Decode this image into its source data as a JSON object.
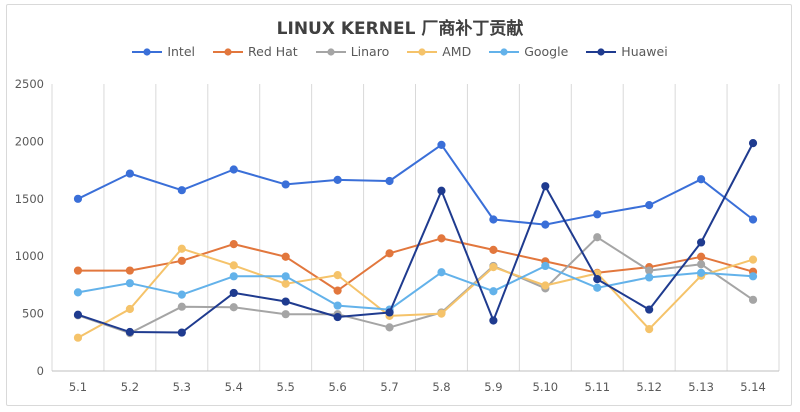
{
  "chart_data": {
    "type": "line",
    "title": "LINUX KERNEL 厂商补丁贡献",
    "xlabel": "",
    "ylabel": "",
    "categories": [
      "5.1",
      "5.2",
      "5.3",
      "5.4",
      "5.5",
      "5.6",
      "5.7",
      "5.8",
      "5.9",
      "5.10",
      "5.11",
      "5.12",
      "5.13",
      "5.14"
    ],
    "ylim": [
      0,
      2500
    ],
    "yticks": [
      0,
      500,
      1000,
      1500,
      2000,
      2500
    ],
    "grid": "vertical",
    "legend_position": "top",
    "series": [
      {
        "name": "Intel",
        "color": "#3a6fd8",
        "values": [
          1500,
          1720,
          1575,
          1755,
          1625,
          1665,
          1655,
          1970,
          1320,
          1275,
          1365,
          1445,
          1670,
          1320
        ]
      },
      {
        "name": "Red Hat",
        "color": "#e2773d",
        "values": [
          875,
          875,
          960,
          1105,
          995,
          700,
          1025,
          1155,
          1055,
          955,
          855,
          905,
          995,
          865
        ]
      },
      {
        "name": "Linaro",
        "color": "#a5a5a5",
        "values": [
          485,
          330,
          560,
          555,
          495,
          495,
          380,
          510,
          915,
          720,
          1165,
          875,
          930,
          620
        ]
      },
      {
        "name": "AMD",
        "color": "#f5c36a",
        "values": [
          290,
          540,
          1065,
          920,
          760,
          835,
          480,
          500,
          905,
          745,
          850,
          365,
          830,
          970
        ]
      },
      {
        "name": "Google",
        "color": "#63b2ea",
        "values": [
          685,
          765,
          665,
          825,
          825,
          570,
          535,
          860,
          695,
          915,
          725,
          815,
          855,
          825
        ]
      },
      {
        "name": "Huawei",
        "color": "#1f3b8f",
        "values": [
          490,
          340,
          335,
          680,
          605,
          470,
          510,
          1570,
          440,
          1610,
          800,
          535,
          1120,
          1985
        ]
      }
    ]
  }
}
